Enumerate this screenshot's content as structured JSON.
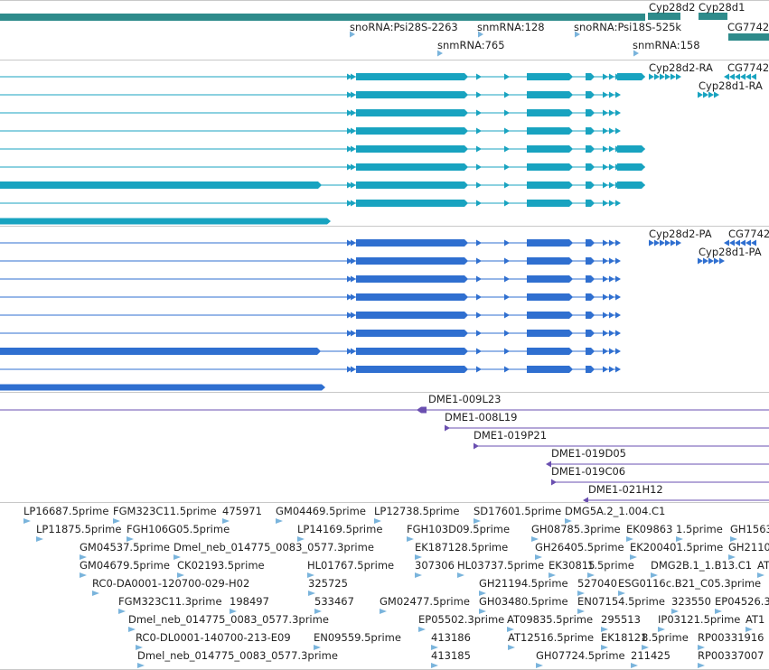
{
  "colors": {
    "gene": "#2e8b8b",
    "transcript_ra": "#18a3c0",
    "transcript_pa": "#2f6fd0",
    "clone": "#6a4fb0",
    "est": "#7ab4dc",
    "separator": "#c8c8c8"
  },
  "gene_track": {
    "labels": [
      "Cyp28d2",
      "Cyp28d1",
      "snoRNA:Psi28S-2263",
      "snmRNA:128",
      "snoRNA:Psi18S-525k",
      "CG7742",
      "snmRNA:765",
      "snmRNA:158"
    ]
  },
  "transcript_track": {
    "labels": [
      "Cyp28d2-RA",
      "CG7742",
      "Cyp28d1-RA"
    ]
  },
  "protein_track": {
    "labels": [
      "Cyp28d2-PA",
      "CG7742",
      "Cyp28d1-PA"
    ]
  },
  "clone_track": {
    "labels": [
      "DME1-009L23",
      "DME1-008L19",
      "DME1-019P21",
      "DME1-019D05",
      "DME1-019C06",
      "DME1-021H12"
    ]
  },
  "est_track": {
    "labels": [
      "LP16687.5prime",
      "FGM323C11.5prime",
      "475971",
      "GM04469.5prime",
      "LP12738.5prime",
      "SD17601.5prime",
      "DMG5A.2_1.004.C1",
      "LP11875.5prime",
      "FGH106G05.5prime",
      "LP14169.5prime",
      "FGH103D09.5prime",
      "GH08785.3prime",
      "EK09863",
      "1.5prime",
      "GH1563",
      "GM04537.5prime",
      "Dmel_neb_014775_0083_0577.3prime",
      "EK187128.5prime",
      "GH26405.5prime",
      "EK200401.5prime",
      "GH2110",
      "GM04679.5prime",
      "CK02193.5prime",
      "HL01767.5prime",
      "307306",
      "HL03737.5prime",
      "EK30815",
      "1.5prime",
      "DMG2B.1_1.B13.C1",
      "AT",
      "RC0-DA0001-120700-029-H02",
      "325725",
      "GH21194.5prime",
      "527040",
      "ESG0116c.B21_C05.3prime",
      "FGM323C11.3prime",
      "198497",
      "533467",
      "GM02477.5prime",
      "GH03480.5prime",
      "EN07154.5prime",
      "323550",
      "EP04526.3",
      "Dmel_neb_014775_0083_0577.3prime",
      "EP05502.3prime",
      "AT09835.5prime",
      "295513",
      "IP03121.5prime",
      "AT1",
      "RC0-DL0001-140700-213-E09",
      "EN09559.5prime",
      "413186",
      "AT12516.5prime",
      "EK18121",
      "8.5prime",
      "RP00331916",
      "Dmel_neb_014775_0083_0577.3prime",
      "413185",
      "GH07724.5prime",
      "211425",
      "RP00337007"
    ]
  }
}
